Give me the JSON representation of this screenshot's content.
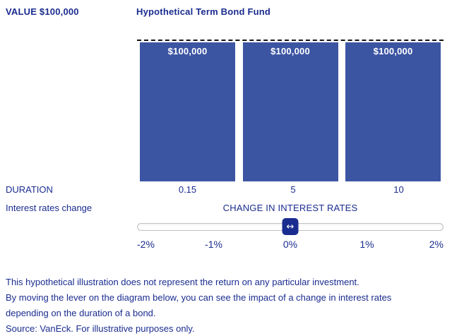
{
  "colors": {
    "navy_text": "#1a2c8f",
    "bar_blue": "#3c55a3",
    "track_border": "#c2c2c2",
    "reference_line": "#141414",
    "bar_label_text": "#ffffff",
    "background": "#ffffff"
  },
  "header": {
    "value_label": "VALUE $100,000",
    "title": "Hypothetical Term Bond Fund"
  },
  "chart_data": {
    "type": "bar",
    "title": "Hypothetical Term Bond Fund",
    "categories": [
      "0.15",
      "5",
      "10"
    ],
    "values": [
      100000,
      100000,
      100000
    ],
    "bar_labels": [
      "$100,000",
      "$100,000",
      "$100,000"
    ],
    "xlabel": "DURATION",
    "ylabel": "VALUE $100,000",
    "ylim": [
      0,
      100000
    ],
    "reference_line_value": 100000,
    "reference_line_style": "dashed",
    "legend": "none",
    "bar_color": "#3c55a3"
  },
  "duration_row": {
    "label": "DURATION"
  },
  "interest_row": {
    "label": "Interest rates change",
    "axis_title": "CHANGE IN INTEREST RATES"
  },
  "slider": {
    "current_value": "0%",
    "ticks": [
      "-2%",
      "-1%",
      "0%",
      "1%",
      "2%"
    ],
    "thumb_glyph": "↔"
  },
  "footer": {
    "line1": "This hypothetical illustration does not represent the return on any particular investment.",
    "line2": "By moving the lever on the diagram below, you can see the impact of a change in interest rates",
    "line3": "depending on the duration of a bond.",
    "source": "Source: VanEck. For illustrative purposes only."
  }
}
